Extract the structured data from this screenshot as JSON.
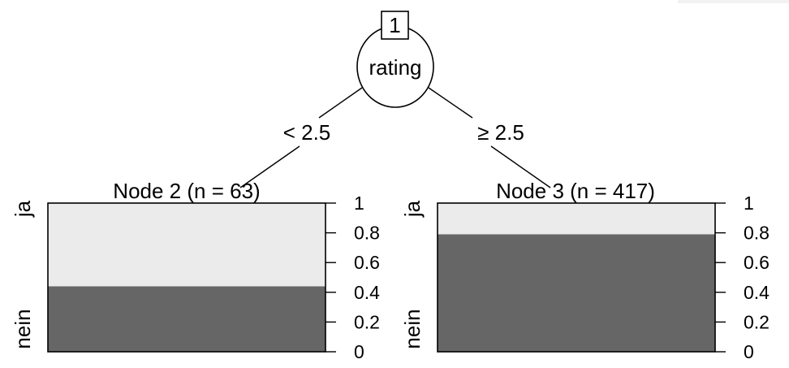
{
  "tree": {
    "root": {
      "id": "1",
      "variable": "rating"
    },
    "edges": [
      {
        "label": "< 2.5"
      },
      {
        "label": "≥ 2.5"
      }
    ],
    "terminals": [
      {
        "title": "Node 2 (n = 63)",
        "node": 2,
        "n": 63,
        "share_ja": 0.56,
        "share_nein": 0.44
      },
      {
        "title": "Node 3 (n = 417)",
        "node": 3,
        "n": 417,
        "share_ja": 0.21,
        "share_nein": 0.79
      }
    ],
    "category_labels": {
      "top": "ja",
      "bottom": "nein"
    },
    "axis_ticks": [
      "1",
      "0.8",
      "0.6",
      "0.4",
      "0.2",
      "0"
    ],
    "colors": {
      "ja": "#ebebeb",
      "nein": "#666666"
    }
  }
}
